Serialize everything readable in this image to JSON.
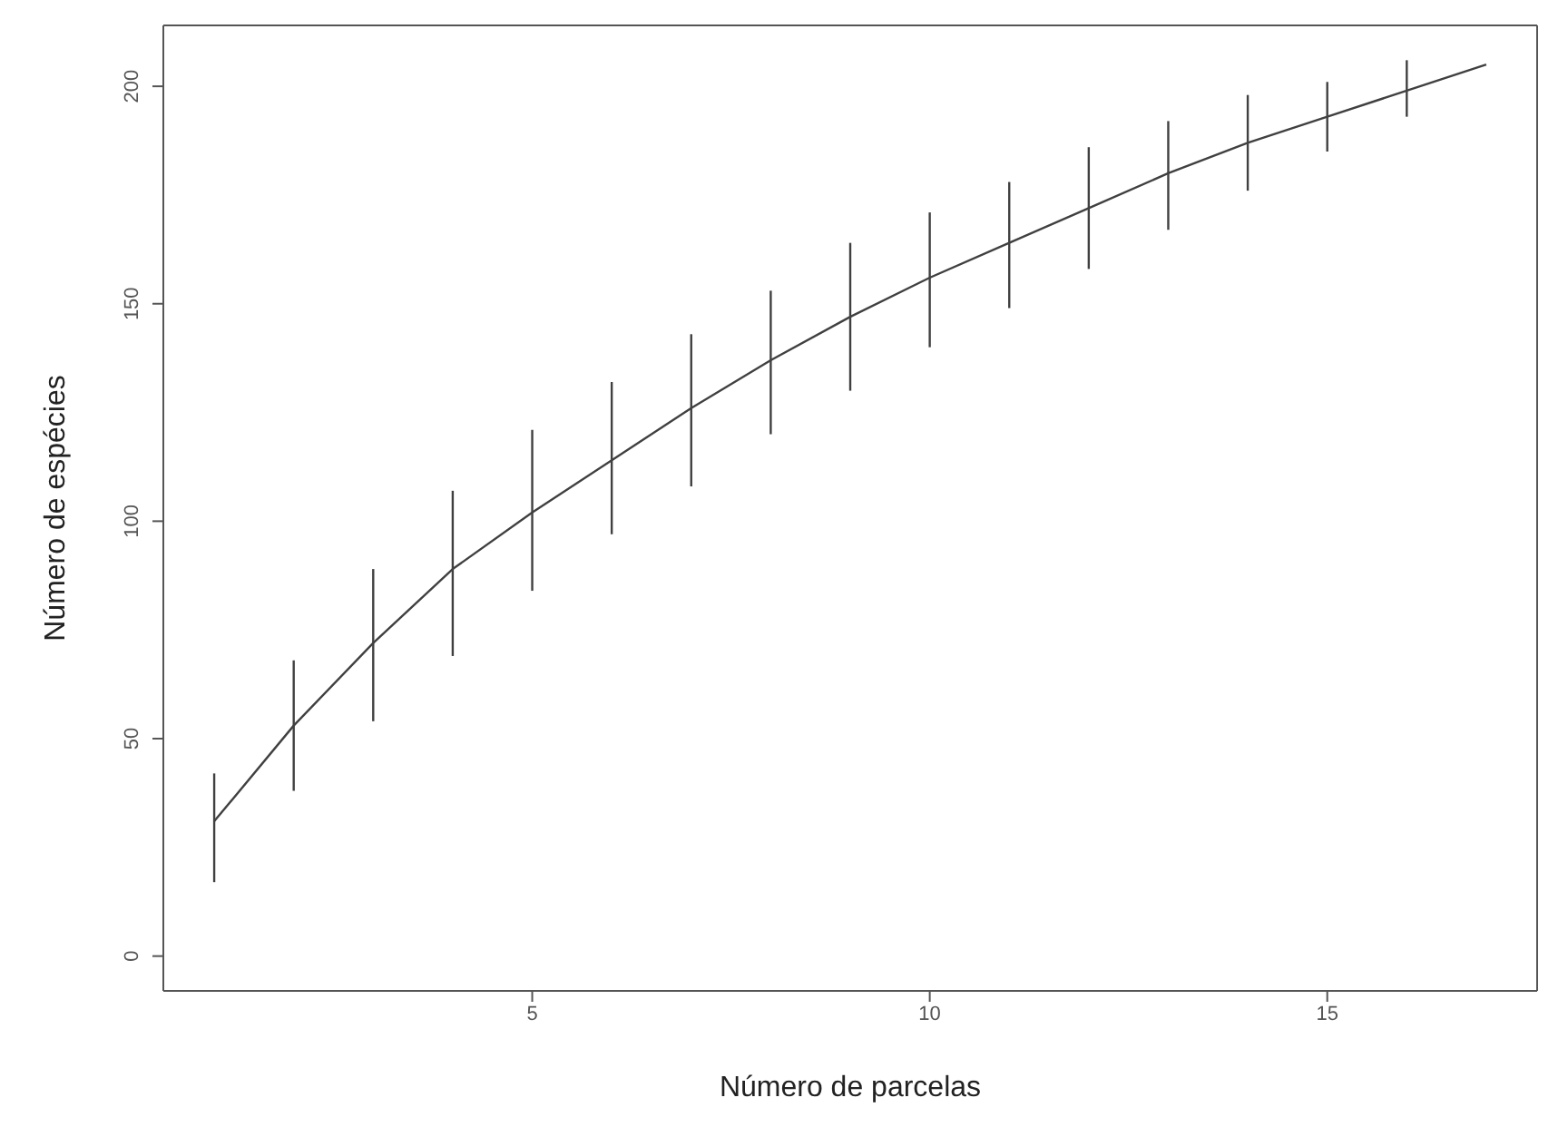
{
  "chart_data": {
    "type": "line",
    "xlabel": "Número de parcelas",
    "ylabel": "Número de espécies",
    "x": [
      1,
      2,
      3,
      4,
      5,
      6,
      7,
      8,
      9,
      10,
      11,
      12,
      13,
      14,
      15,
      16,
      17
    ],
    "values": [
      31,
      53,
      72,
      89,
      102,
      114,
      126,
      137,
      147,
      156,
      164,
      172,
      180,
      187,
      193,
      199,
      205
    ],
    "errors": [
      [
        17,
        42
      ],
      [
        38,
        68
      ],
      [
        54,
        89
      ],
      [
        69,
        107
      ],
      [
        84,
        121
      ],
      [
        97,
        132
      ],
      [
        108,
        143
      ],
      [
        120,
        153
      ],
      [
        130,
        164
      ],
      [
        140,
        171
      ],
      [
        149,
        178
      ],
      [
        158,
        186
      ],
      [
        167,
        192
      ],
      [
        176,
        198
      ],
      [
        185,
        201
      ],
      [
        193,
        206
      ],
      null
    ],
    "color": "#404040",
    "xlim": [
      0.36,
      17.64
    ],
    "xticks": [
      5,
      10,
      15
    ],
    "ylim": [
      -8,
      214
    ],
    "yticks": [
      0,
      50,
      100,
      150,
      200
    ]
  }
}
